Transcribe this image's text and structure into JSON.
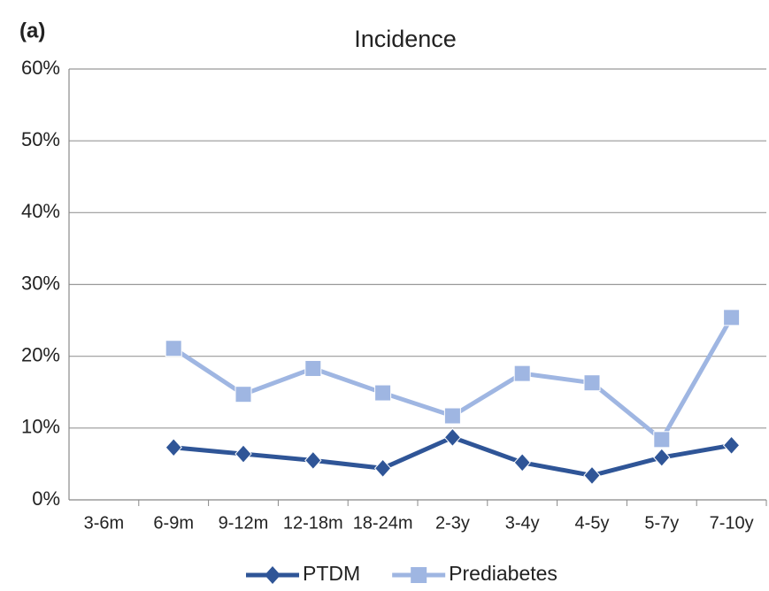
{
  "chart_data": {
    "type": "line",
    "panel_label": "(a)",
    "title": "Incidence",
    "categories": [
      "3-6m",
      "6-9m",
      "9-12m",
      "12-18m",
      "18-24m",
      "2-3y",
      "3-4y",
      "4-5y",
      "5-7y",
      "7-10y"
    ],
    "series": [
      {
        "name": "PTDM",
        "color": "#2f5597",
        "marker": "diamond",
        "values": [
          null,
          7.3,
          6.4,
          5.5,
          4.4,
          8.7,
          5.2,
          3.4,
          5.9,
          7.6
        ]
      },
      {
        "name": "Prediabetes",
        "color": "#9fb6e2",
        "marker": "square",
        "values": [
          null,
          21.1,
          14.7,
          18.3,
          14.9,
          11.7,
          17.6,
          16.3,
          8.4,
          25.4
        ]
      }
    ],
    "ylim": [
      0,
      60
    ],
    "yticks": [
      {
        "value": 0,
        "label": "0%"
      },
      {
        "value": 10,
        "label": "10%"
      },
      {
        "value": 20,
        "label": "20%"
      },
      {
        "value": 30,
        "label": "30%"
      },
      {
        "value": 40,
        "label": "40%"
      },
      {
        "value": 50,
        "label": "50%"
      },
      {
        "value": 60,
        "label": "60%"
      }
    ],
    "grid": true,
    "legend": "bottom"
  }
}
